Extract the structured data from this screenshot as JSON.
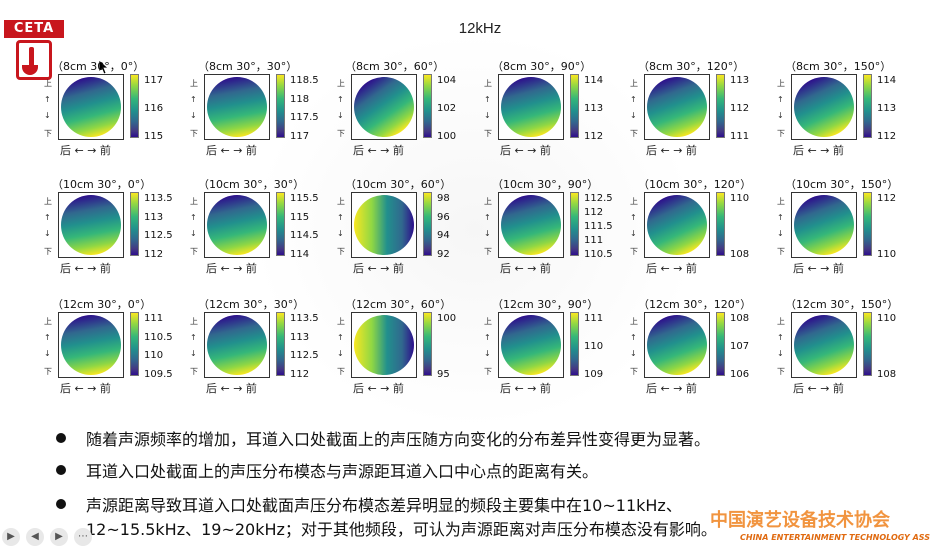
{
  "slide_title": "12kHz",
  "logo": {
    "text": "CETA"
  },
  "caption_text": "后 ← → 前",
  "side_axis": [
    "上",
    "↑",
    "↓",
    "下"
  ],
  "panels": [
    {
      "label": "（8cm 30°，0°）",
      "ticks": [
        "117",
        "116",
        "115"
      ],
      "hue": "topbottom",
      "angle": -15
    },
    {
      "label": "（8cm 30°，30°）",
      "ticks": [
        "118.5",
        "118",
        "117.5",
        "117"
      ],
      "hue": "topbottom",
      "angle": -10
    },
    {
      "label": "（8cm 30°，60°）",
      "ticks": [
        "104",
        "102",
        "100"
      ],
      "hue": "topbottom",
      "angle": -35
    },
    {
      "label": "（8cm 30°，90°）",
      "ticks": [
        "114",
        "113",
        "112"
      ],
      "hue": "topbottom",
      "angle": -15
    },
    {
      "label": "（8cm 30°，120°）",
      "ticks": [
        "113",
        "112",
        "111"
      ],
      "hue": "topbottom",
      "angle": -20
    },
    {
      "label": "（8cm 30°，150°）",
      "ticks": [
        "114",
        "113",
        "112"
      ],
      "hue": "topbottom",
      "angle": -25
    },
    {
      "label": "（10cm 30°，0°）",
      "ticks": [
        "113.5",
        "113",
        "112.5",
        "112"
      ],
      "hue": "topbottom",
      "angle": -10
    },
    {
      "label": "（10cm 30°，30°）",
      "ticks": [
        "115.5",
        "115",
        "114.5",
        "114"
      ],
      "hue": "topbottom",
      "angle": -12
    },
    {
      "label": "（10cm 30°，60°）",
      "ticks": [
        "98",
        "96",
        "94",
        "92"
      ],
      "hue": "leftright",
      "angle": 0
    },
    {
      "label": "（10cm 30°，90°）",
      "ticks": [
        "112.5",
        "112",
        "111.5",
        "111",
        "110.5"
      ],
      "hue": "topbottom",
      "angle": -15
    },
    {
      "label": "（10cm 30°，120°）",
      "ticks": [
        "110",
        "108"
      ],
      "hue": "topbottom",
      "angle": -25
    },
    {
      "label": "（10cm 30°，150°）",
      "ticks": [
        "112",
        "110"
      ],
      "hue": "topbottom",
      "angle": -20
    },
    {
      "label": "（12cm 30°，0°）",
      "ticks": [
        "111",
        "110.5",
        "110",
        "109.5"
      ],
      "hue": "topbottom",
      "angle": -10
    },
    {
      "label": "（12cm 30°，30°）",
      "ticks": [
        "113.5",
        "113",
        "112.5",
        "112"
      ],
      "hue": "topbottom",
      "angle": -12
    },
    {
      "label": "（12cm 30°，60°）",
      "ticks": [
        "100",
        "95"
      ],
      "hue": "leftright",
      "angle": 0
    },
    {
      "label": "（12cm 30°，90°）",
      "ticks": [
        "111",
        "110",
        "109"
      ],
      "hue": "topbottom",
      "angle": -15
    },
    {
      "label": "（12cm 30°，120°）",
      "ticks": [
        "108",
        "107",
        "106"
      ],
      "hue": "topbottom",
      "angle": -20
    },
    {
      "label": "（12cm 30°，150°）",
      "ticks": [
        "110",
        "108"
      ],
      "hue": "topbottom",
      "angle": -20
    }
  ],
  "bullets": [
    "随着声源频率的增加，耳道入口处截面上的声压随方向变化的分布差异性变得更为显著。",
    "耳道入口处截面上的声压分布模态与声源距耳道入口中心点的距离有关。",
    "声源距离导致耳道入口处截面声压分布模态差异明显的频段主要集中在10~11kHz、",
    "12~15.5kHz、19~20kHz；对于其他频段，可认为声源距离对声压分布模态没有影响。"
  ],
  "watermark": {
    "cn": "中国演艺设备技术协会",
    "en": "CHINA ENTERTAINMENT TECHNOLOGY ASSOCIATION"
  },
  "player_icons": [
    "play-icon",
    "prev-icon",
    "next-icon",
    "more-icon"
  ]
}
